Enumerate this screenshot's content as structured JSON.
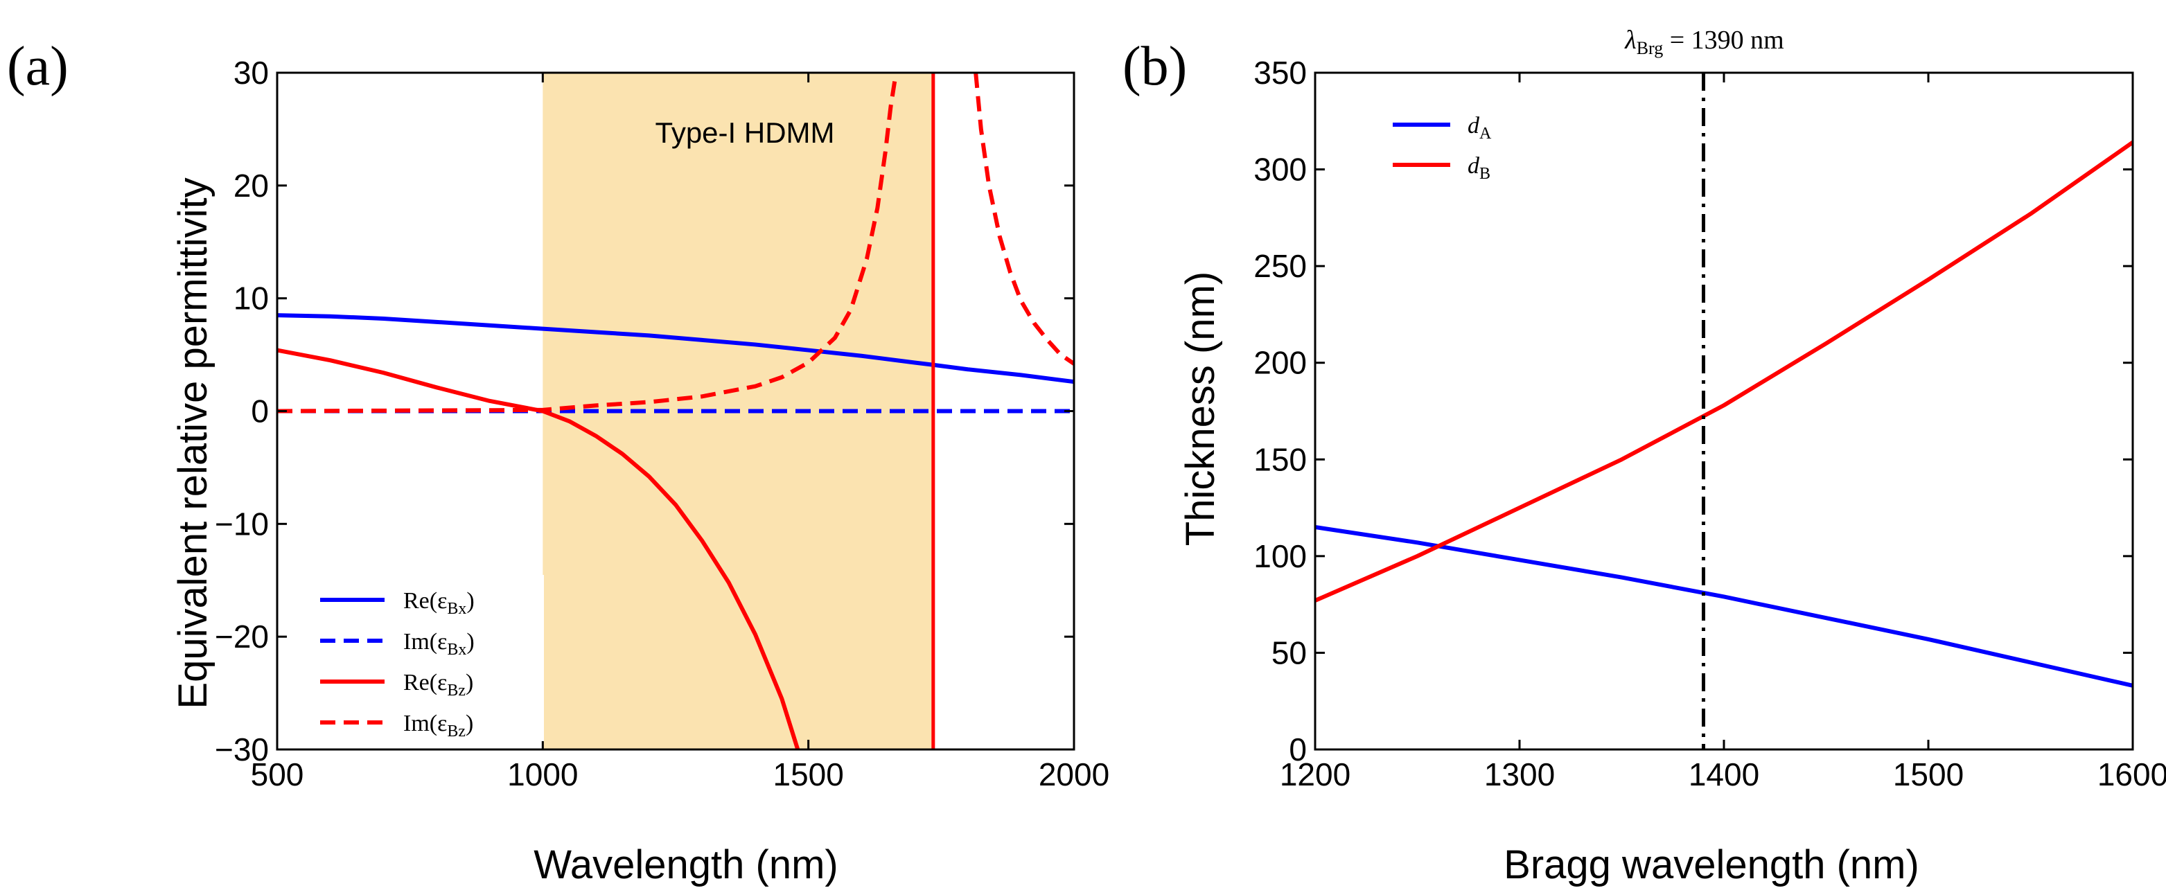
{
  "chart_data": [
    {
      "panel_label": "(a)",
      "type": "line",
      "xlabel": "Wavelength (nm)",
      "ylabel": "Equivalent relative permittivity",
      "xlim": [
        500,
        2000
      ],
      "ylim": [
        -30,
        30
      ],
      "xticks": [
        500,
        1000,
        1500,
        2000
      ],
      "yticks": [
        -30,
        -20,
        -10,
        0,
        10,
        20,
        30
      ],
      "xtick_labels": [
        "500",
        "1000",
        "1500",
        "2000"
      ],
      "ytick_labels": [
        "−30",
        "−20",
        "−10",
        "0",
        "10",
        "20",
        "30"
      ],
      "shaded_region": {
        "x": [
          1000,
          1735
        ],
        "label": "Type-I HDMM",
        "color": "#fbe3b0"
      },
      "vertical_line": {
        "x": 1735,
        "color": "#ff0000"
      },
      "legend_location": "lower-left",
      "series": [
        {
          "name": "Re(ε_Bx)",
          "legend_main": "Re(ε",
          "legend_sub": "Bx",
          "color": "#0000ff",
          "dash": "solid",
          "x": [
            500,
            600,
            700,
            800,
            900,
            1000,
            1100,
            1200,
            1300,
            1400,
            1500,
            1600,
            1700,
            1735,
            1800,
            1900,
            2000
          ],
          "y": [
            8.5,
            8.4,
            8.2,
            7.9,
            7.6,
            7.3,
            7.0,
            6.7,
            6.3,
            5.9,
            5.4,
            4.9,
            4.3,
            4.1,
            3.7,
            3.2,
            2.6
          ]
        },
        {
          "name": "Im(ε_Bx)",
          "legend_main": "Im(ε",
          "legend_sub": "Bx",
          "color": "#0000ff",
          "dash": "dashed",
          "x": [
            500,
            2000
          ],
          "y": [
            0.0,
            0.0
          ]
        },
        {
          "name": "Re(ε_Bz)",
          "legend_main": "Re(ε",
          "legend_sub": "Bz",
          "color": "#ff0000",
          "dash": "solid",
          "x": [
            500,
            600,
            700,
            800,
            900,
            1000,
            1050,
            1100,
            1150,
            1200,
            1250,
            1300,
            1350,
            1400,
            1450,
            1480
          ],
          "y": [
            5.4,
            4.5,
            3.4,
            2.1,
            0.9,
            0.0,
            -0.9,
            -2.2,
            -3.8,
            -5.8,
            -8.3,
            -11.5,
            -15.2,
            -19.8,
            -25.5,
            -30
          ]
        },
        {
          "name": "Im(ε_Bz)",
          "legend_main": "Im(ε",
          "legend_sub": "Bz",
          "color": "#ff0000",
          "dash": "dashed",
          "x": [
            500,
            1000,
            1100,
            1200,
            1300,
            1400,
            1450,
            1500,
            1550,
            1580,
            1610,
            1630,
            1645,
            1655,
            1665
          ],
          "y": [
            0.0,
            0.1,
            0.5,
            0.8,
            1.3,
            2.2,
            3.0,
            4.3,
            6.5,
            9.0,
            13.5,
            18.0,
            23.0,
            27.0,
            30
          ],
          "x2": [
            1815,
            1825,
            1840,
            1860,
            1880,
            1900,
            1925,
            1950,
            1975,
            2000
          ],
          "y2": [
            30,
            25.0,
            20.0,
            15.5,
            12.3,
            9.8,
            7.8,
            6.3,
            5.0,
            4.2
          ]
        }
      ]
    },
    {
      "panel_label": "(b)",
      "type": "line",
      "xlabel": "Bragg wavelength (nm)",
      "ylabel": "Thickness (nm)",
      "xlim": [
        1200,
        1600
      ],
      "ylim": [
        0,
        350
      ],
      "xticks": [
        1200,
        1300,
        1400,
        1500,
        1600
      ],
      "yticks": [
        0,
        50,
        100,
        150,
        200,
        250,
        300,
        350
      ],
      "xtick_labels": [
        "1200",
        "1300",
        "1400",
        "1500",
        "1600"
      ],
      "ytick_labels": [
        "0",
        "50",
        "100",
        "150",
        "200",
        "250",
        "300",
        "350"
      ],
      "vertical_line": {
        "x": 1390,
        "style": "dash-dot",
        "color": "#000000",
        "label_lambda": "λ",
        "label_sub": "Brg",
        "label_value": " = 1390 nm"
      },
      "legend_location": "upper-left",
      "series": [
        {
          "name": "d_A",
          "legend_main": "d",
          "legend_sub": "A",
          "color": "#0000ff",
          "x": [
            1200,
            1250,
            1300,
            1350,
            1400,
            1450,
            1500,
            1550,
            1600
          ],
          "y": [
            115,
            107,
            98,
            89,
            79,
            68,
            57,
            45,
            33
          ]
        },
        {
          "name": "d_B",
          "legend_main": "d",
          "legend_sub": "B",
          "color": "#ff0000",
          "x": [
            1200,
            1250,
            1300,
            1350,
            1400,
            1450,
            1500,
            1550,
            1600
          ],
          "y": [
            77,
            100,
            125,
            150,
            178,
            210,
            243,
            277,
            314
          ]
        }
      ]
    }
  ]
}
